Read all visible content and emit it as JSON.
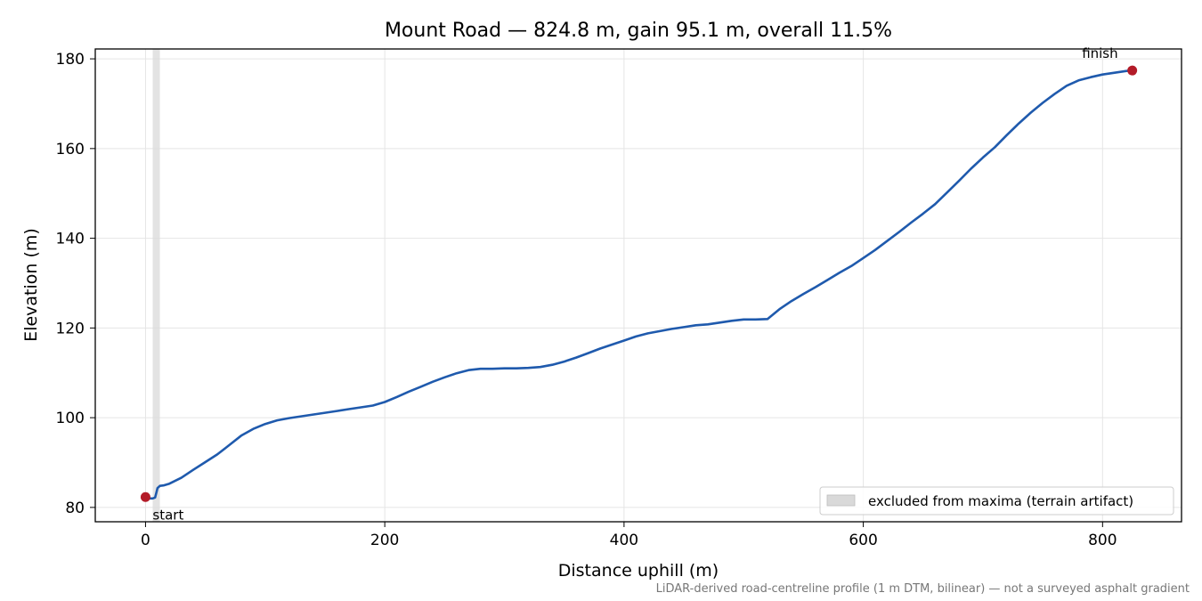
{
  "chart_data": {
    "type": "line",
    "title": "Mount Road — 824.8 m, gain 95.1 m, overall 11.5%",
    "xlabel": "Distance uphill (m)",
    "ylabel": "Elevation (m)",
    "xlim": [
      -42,
      866
    ],
    "ylim": [
      76.8,
      182.2
    ],
    "xticks": [
      0,
      200,
      400,
      600,
      800
    ],
    "yticks": [
      80,
      100,
      120,
      140,
      160,
      180
    ],
    "grid": true,
    "series": [
      {
        "x": [
          0,
          3,
          6,
          8,
          9,
          10,
          12,
          15,
          20,
          30,
          40,
          50,
          60,
          70,
          80,
          90,
          100,
          110,
          120,
          130,
          140,
          150,
          160,
          170,
          180,
          190,
          200,
          210,
          220,
          230,
          240,
          250,
          260,
          270,
          280,
          290,
          300,
          310,
          320,
          330,
          340,
          350,
          360,
          370,
          380,
          390,
          400,
          410,
          420,
          430,
          440,
          450,
          460,
          470,
          480,
          490,
          500,
          510,
          520,
          530,
          540,
          550,
          560,
          570,
          580,
          590,
          600,
          610,
          620,
          630,
          640,
          650,
          660,
          670,
          680,
          690,
          700,
          710,
          720,
          730,
          740,
          750,
          760,
          770,
          780,
          790,
          800,
          810,
          820,
          824.8
        ],
        "y": [
          82.3,
          82.0,
          82.0,
          82.2,
          83.2,
          84.3,
          84.8,
          84.9,
          85.3,
          86.6,
          88.4,
          90.1,
          91.8,
          93.9,
          96.0,
          97.5,
          98.6,
          99.4,
          99.9,
          100.3,
          100.7,
          101.1,
          101.5,
          101.9,
          102.3,
          102.7,
          103.5,
          104.6,
          105.8,
          106.9,
          108.0,
          109.0,
          109.9,
          110.6,
          110.9,
          110.9,
          111.0,
          111.0,
          111.1,
          111.3,
          111.8,
          112.5,
          113.4,
          114.4,
          115.4,
          116.3,
          117.2,
          118.1,
          118.8,
          119.3,
          119.8,
          120.2,
          120.6,
          120.8,
          121.2,
          121.6,
          121.9,
          121.9,
          122.0,
          124.2,
          126.0,
          127.6,
          129.1,
          130.7,
          132.3,
          133.8,
          135.6,
          137.4,
          139.4,
          141.4,
          143.5,
          145.5,
          147.6,
          150.2,
          152.8,
          155.5,
          158.0,
          160.3,
          163.0,
          165.6,
          168.0,
          170.2,
          172.2,
          174.0,
          175.2,
          175.9,
          176.5,
          176.9,
          177.3,
          177.4
        ],
        "color": "#1f5aad"
      }
    ],
    "points": [
      {
        "label": "start",
        "x": 0,
        "y": 82.3,
        "color": "#b31b28"
      },
      {
        "label": "finish",
        "x": 824.8,
        "y": 177.4,
        "color": "#b31b28"
      }
    ],
    "excluded_region": {
      "x": [
        6,
        12
      ],
      "color": "#d9d9d9"
    },
    "legend": {
      "location": "lower-right",
      "entries": [
        "excluded from maxima (terrain artifact)"
      ]
    },
    "footnote": "LiDAR-derived road-centreline profile (1 m DTM, bilinear) — not a surveyed asphalt gradient"
  }
}
